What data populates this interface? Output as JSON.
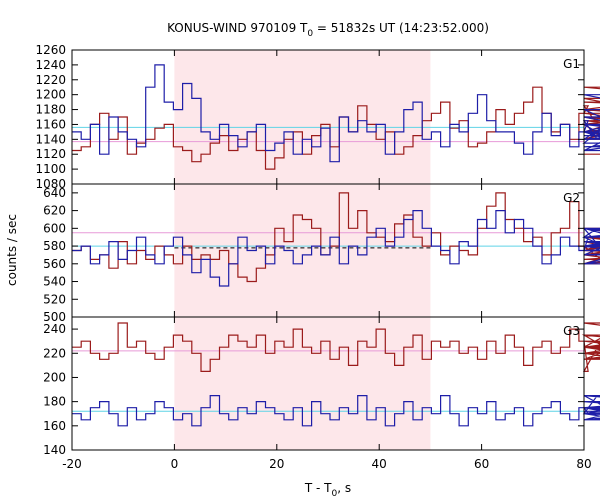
{
  "chart_data": {
    "type": "line",
    "title": "KONUS-WIND 970109 T",
    "title_sub": "0",
    "title_rest": " = 51832s UT (14:23:52.000)",
    "xlabel": "T - T",
    "xlabel_sub": "0",
    "xlabel_rest": ", s",
    "ylabel": "counts / sec",
    "xlim": [
      -20,
      80
    ],
    "x_ticks": [
      -20,
      0,
      20,
      40,
      60,
      80
    ],
    "shaded_interval": [
      0,
      50
    ],
    "colors": {
      "shade": "#fde7ea",
      "red_series": "#9b1b1b",
      "blue_series": "#1e1ea8",
      "cyan_level": "#5fd3e6",
      "pink_level": "#e79ad8",
      "frame": "#000000"
    },
    "bin_width": 1.8,
    "x_start": -20,
    "panels": [
      {
        "label": "G1",
        "ylim": [
          1080,
          1260
        ],
        "y_ticks": [
          1080,
          1100,
          1120,
          1140,
          1160,
          1180,
          1200,
          1220,
          1240,
          1260
        ],
        "levels": [
          {
            "series": "blue",
            "color_key": "cyan_level",
            "value": 1156
          },
          {
            "series": "red",
            "color_key": "pink_level",
            "value": 1137
          }
        ],
        "red": [
          1125,
          1130,
          1160,
          1175,
          1140,
          1170,
          1120,
          1135,
          1140,
          1155,
          1160,
          1130,
          1125,
          1110,
          1120,
          1135,
          1145,
          1125,
          1140,
          1150,
          1125,
          1100,
          1115,
          1140,
          1150,
          1120,
          1145,
          1160,
          1130,
          1170,
          1150,
          1185,
          1160,
          1140,
          1150,
          1120,
          1130,
          1145,
          1165,
          1175,
          1190,
          1155,
          1165,
          1130,
          1135,
          1150,
          1180,
          1160,
          1175,
          1190,
          1210,
          1175,
          1150,
          1160,
          1140,
          1175,
          1185,
          1160,
          1140,
          1150,
          1140,
          1160,
          1170,
          1150,
          1180,
          1195,
          1170,
          1160,
          1165,
          1150,
          1170,
          1150,
          1210,
          1190,
          1180,
          1160,
          1150,
          1175,
          1140,
          1150,
          1120
        ],
        "blue": [
          1150,
          1140,
          1160,
          1120,
          1170,
          1150,
          1140,
          1130,
          1210,
          1240,
          1190,
          1180,
          1215,
          1195,
          1150,
          1140,
          1160,
          1145,
          1130,
          1150,
          1160,
          1125,
          1135,
          1150,
          1120,
          1140,
          1130,
          1155,
          1110,
          1170,
          1150,
          1165,
          1150,
          1160,
          1120,
          1150,
          1180,
          1190,
          1140,
          1150,
          1130,
          1160,
          1150,
          1175,
          1200,
          1165,
          1150,
          1150,
          1135,
          1120,
          1150,
          1175,
          1145,
          1160,
          1130,
          1150,
          1165,
          1140,
          1160,
          1135,
          1180,
          1150,
          1125,
          1170,
          1150,
          1130,
          1140,
          1150,
          1125,
          1150,
          1150,
          1200,
          1160,
          1140,
          1160,
          1160,
          1130,
          1150,
          1145,
          1140,
          1150
        ]
      },
      {
        "label": "G2",
        "ylim": [
          500,
          650
        ],
        "y_ticks": [
          500,
          520,
          540,
          560,
          580,
          600,
          620,
          640
        ],
        "levels": [
          {
            "series": "blue",
            "color_key": "cyan_level",
            "value": 580
          },
          {
            "series": "red",
            "color_key": "pink_level",
            "value": 595
          }
        ],
        "dashed_level": {
          "value": 578,
          "x_range": [
            0,
            50
          ]
        },
        "red": [
          575,
          580,
          565,
          570,
          555,
          585,
          560,
          575,
          565,
          580,
          570,
          560,
          580,
          565,
          570,
          565,
          575,
          560,
          545,
          540,
          555,
          570,
          600,
          585,
          615,
          610,
          600,
          570,
          580,
          640,
          600,
          620,
          595,
          590,
          585,
          605,
          615,
          590,
          580,
          595,
          570,
          580,
          575,
          570,
          600,
          625,
          640,
          610,
          600,
          585,
          590,
          570,
          595,
          600,
          630,
          580,
          575,
          580,
          560,
          560,
          575,
          585,
          570,
          560,
          560,
          575,
          570,
          590,
          580,
          560,
          560,
          575,
          570,
          600,
          580,
          575,
          565,
          580,
          570,
          590,
          560
        ],
        "blue": [
          575,
          580,
          560,
          570,
          585,
          565,
          575,
          590,
          570,
          560,
          580,
          590,
          570,
          550,
          565,
          545,
          535,
          560,
          590,
          575,
          580,
          560,
          580,
          575,
          560,
          570,
          580,
          570,
          590,
          560,
          580,
          570,
          590,
          600,
          580,
          590,
          610,
          620,
          600,
          580,
          575,
          560,
          585,
          580,
          610,
          600,
          620,
          595,
          610,
          600,
          580,
          560,
          570,
          590,
          580,
          575,
          590,
          600,
          570,
          585,
          580,
          590,
          560,
          580,
          590,
          600,
          570,
          575,
          580,
          560,
          580,
          590,
          600,
          570,
          580,
          600,
          585,
          570,
          580,
          575,
          580
        ]
      },
      {
        "label": "G3",
        "ylim": [
          140,
          250
        ],
        "y_ticks": [
          140,
          160,
          180,
          200,
          220,
          240
        ],
        "levels": [
          {
            "series": "blue",
            "color_key": "cyan_level",
            "value": 172
          },
          {
            "series": "red",
            "color_key": "pink_level",
            "value": 222
          }
        ],
        "red": [
          225,
          230,
          220,
          215,
          220,
          245,
          225,
          230,
          220,
          215,
          225,
          235,
          230,
          220,
          205,
          215,
          225,
          235,
          230,
          225,
          235,
          220,
          230,
          225,
          240,
          225,
          220,
          230,
          215,
          225,
          210,
          230,
          225,
          240,
          220,
          210,
          225,
          235,
          215,
          230,
          225,
          230,
          220,
          225,
          215,
          230,
          220,
          235,
          225,
          210,
          225,
          230,
          220,
          225,
          240,
          230,
          205,
          225,
          235,
          220,
          215,
          230,
          225,
          225,
          215,
          225,
          230,
          220,
          235,
          225,
          215,
          225,
          230,
          225,
          245,
          225,
          220,
          230,
          215,
          225,
          245
        ],
        "blue": [
          170,
          165,
          175,
          180,
          170,
          160,
          175,
          165,
          170,
          180,
          175,
          165,
          170,
          160,
          175,
          185,
          170,
          165,
          175,
          170,
          180,
          175,
          170,
          165,
          175,
          160,
          180,
          170,
          165,
          175,
          170,
          185,
          165,
          175,
          160,
          170,
          180,
          165,
          175,
          170,
          185,
          170,
          160,
          175,
          170,
          180,
          165,
          170,
          175,
          160,
          170,
          175,
          180,
          170,
          165,
          175,
          170,
          185,
          175,
          170,
          165,
          175,
          170,
          180,
          175,
          170,
          175,
          165,
          175,
          170,
          175,
          185,
          175,
          170,
          165,
          175,
          170,
          175,
          170,
          175,
          172
        ]
      }
    ]
  }
}
